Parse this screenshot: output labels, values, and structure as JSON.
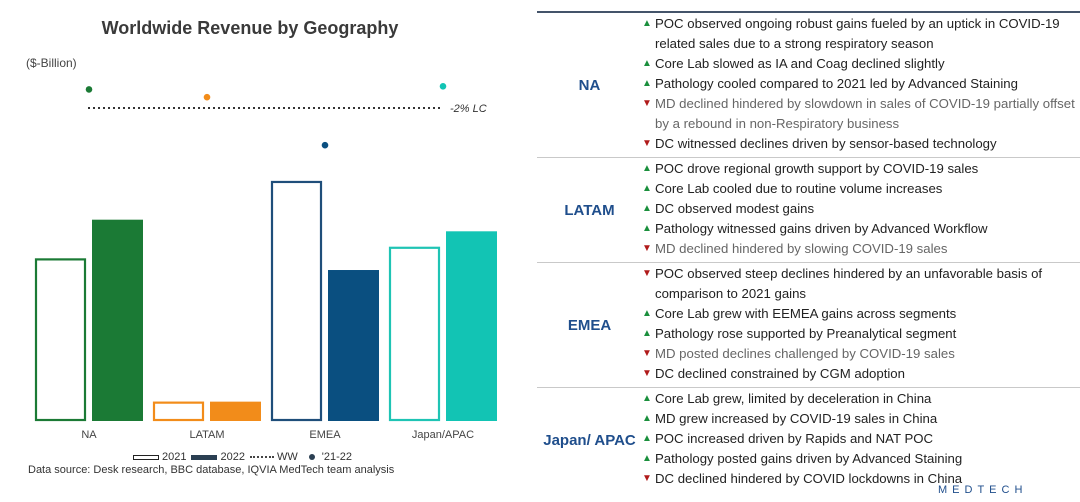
{
  "chart_data": {
    "type": "bar",
    "title": "Worldwide Revenue by Geography",
    "ylabel": "($-Billion)",
    "categories": [
      "NA",
      "LATAM",
      "EMEA",
      "Japan/APAC"
    ],
    "series": [
      {
        "name": "2021",
        "values": [
          21.0,
          2.5,
          31.0,
          22.5
        ],
        "style": "outline",
        "colors": [
          "#1b7a35",
          "#f28c1a",
          "#1f4e7a",
          "#1fc4b4"
        ]
      },
      {
        "name": "2022",
        "values": [
          26.0,
          2.5,
          19.5,
          24.5
        ],
        "style": "filled",
        "colors": [
          "#1b7a35",
          "#f28c1a",
          "#0a4f80",
          "#12c4b4"
        ]
      }
    ],
    "growth_21_22": {
      "name": "'21-22",
      "values": [
        10.0,
        5.0,
        -26.0,
        12.0
      ],
      "colors": [
        "#1b7a35",
        "#f28c1a",
        "#0a4f80",
        "#12c4b4"
      ]
    },
    "ww_line": {
      "name": "WW",
      "value": -2,
      "label": "-2% LC"
    },
    "legend": [
      "2021",
      "2022",
      "WW",
      "'21-22"
    ],
    "ylim": [
      0,
      35
    ],
    "source": "Data source: Desk research, BBC database, IQVIA MedTech team analysis"
  },
  "legend": {
    "y2021": "2021",
    "y2022": "2022",
    "ww": "WW",
    "growth": "'21-22"
  },
  "regions": [
    {
      "name": "NA",
      "items": [
        {
          "dir": "up",
          "text": "POC observed ongoing robust gains fueled by an uptick in COVID-19 related sales due to a strong respiratory season"
        },
        {
          "dir": "up",
          "text": "Core Lab slowed as IA and Coag declined slightly"
        },
        {
          "dir": "up",
          "text": "Pathology cooled compared to 2021 led by Advanced Staining"
        },
        {
          "dir": "down",
          "text": "MD declined hindered by slowdown in sales of COVID-19 partially offset by a rebound in non-Respiratory business"
        },
        {
          "dir": "down",
          "text": "DC witnessed declines driven by sensor-based technology"
        }
      ]
    },
    {
      "name": "LATAM",
      "items": [
        {
          "dir": "up",
          "text": "POC drove regional growth support by COVID-19 sales"
        },
        {
          "dir": "up",
          "text": "Core Lab cooled due to routine volume increases"
        },
        {
          "dir": "up",
          "text": "DC observed modest gains"
        },
        {
          "dir": "up",
          "text": "Pathology witnessed gains driven by Advanced Workflow"
        },
        {
          "dir": "down",
          "text": "MD declined hindered by slowing COVID-19 sales"
        }
      ]
    },
    {
      "name": "EMEA",
      "items": [
        {
          "dir": "down",
          "text": "POC observed steep declines hindered by an unfavorable basis of comparison to 2021 gains"
        },
        {
          "dir": "up",
          "text": "Core Lab grew with EEMEA gains across segments"
        },
        {
          "dir": "up",
          "text": "Pathology rose supported by Preanalytical segment"
        },
        {
          "dir": "down",
          "text": "MD posted declines challenged by COVID-19 sales"
        },
        {
          "dir": "down",
          "text": "DC declined constrained by CGM adoption"
        }
      ]
    },
    {
      "name": "Japan/ APAC",
      "items": [
        {
          "dir": "up",
          "text": "Core Lab grew, limited by deceleration in China"
        },
        {
          "dir": "up",
          "text": "MD grew increased by COVID-19 sales in China"
        },
        {
          "dir": "up",
          "text": "POC increased driven by Rapids and NAT POC"
        },
        {
          "dir": "up",
          "text": "Pathology posted gains driven by Advanced Staining"
        },
        {
          "dir": "down",
          "text": "DC declined hindered by COVID lockdowns in China"
        }
      ]
    }
  ],
  "brand": "MEDTECH",
  "colors": {
    "up": "#1a8f3c",
    "down": "#b01a1a",
    "region": "#1f4e8c"
  }
}
